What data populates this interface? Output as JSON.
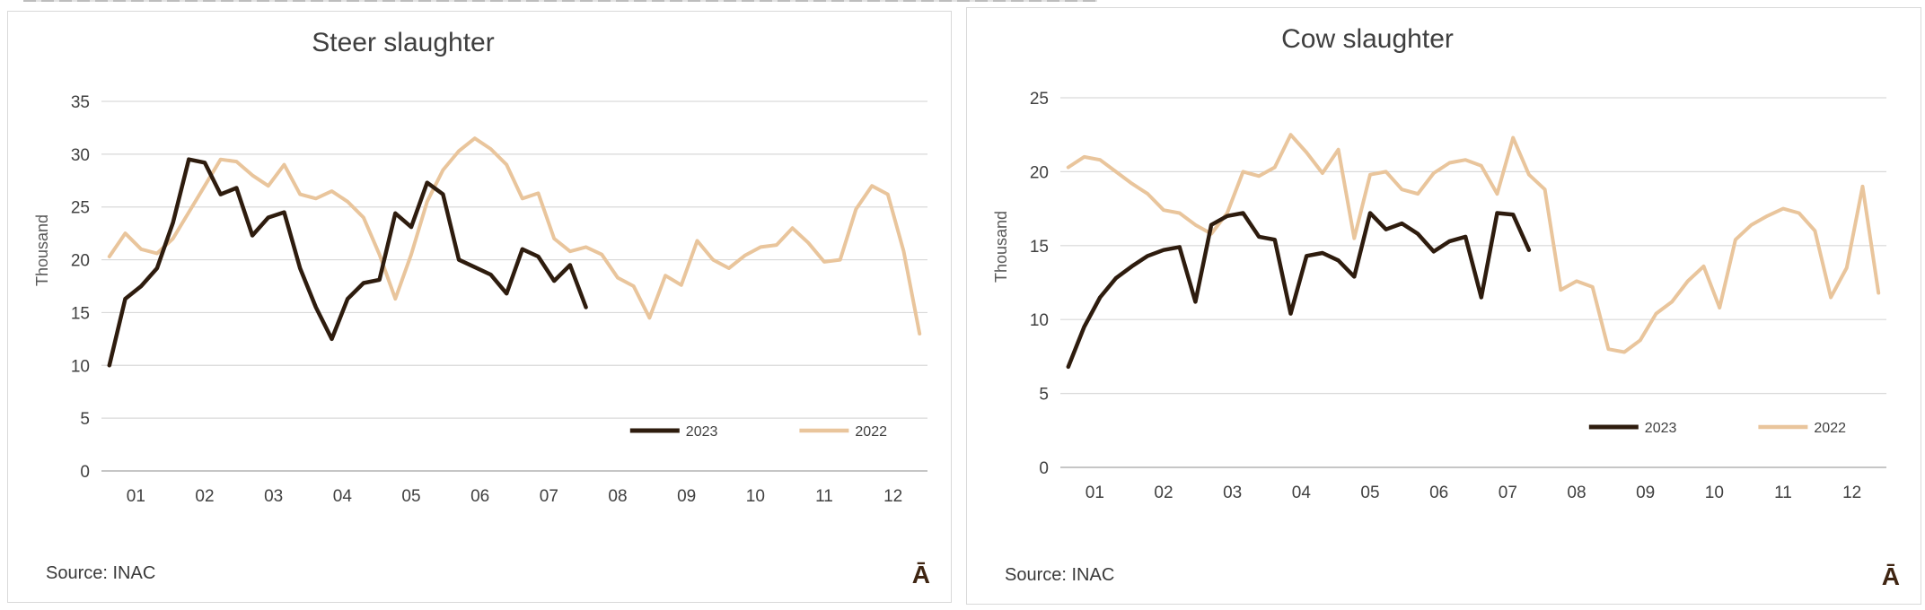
{
  "branding": {
    "glyph": "Ā",
    "color": "#3f2512"
  },
  "style": {
    "grid_color": "#d9d9d9",
    "axis_line_color": "#b3b3b3",
    "tick_text_color": "#404040",
    "title_text_color": "#3f3f3f",
    "source_text_color": "#3a3a3a",
    "y_axis_title_color": "#595959",
    "panel_border_color": "#d9d9d9",
    "series_2023_color": "#2e1c0e",
    "series_2022_color": "#e9c59c"
  },
  "chart_data": [
    {
      "type": "line",
      "title": "Steer slaughter",
      "ylabel": "Thousand",
      "xlabel": "",
      "source_note": "Source: INAC",
      "grid": true,
      "legend_position": "inside-bottom-right",
      "ylim": [
        0,
        35
      ],
      "yticks": [
        0,
        5,
        10,
        15,
        20,
        25,
        30,
        35
      ],
      "x_tick_labels": [
        "01",
        "02",
        "03",
        "04",
        "05",
        "06",
        "07",
        "08",
        "09",
        "10",
        "11",
        "12"
      ],
      "total_slots": 52,
      "series": [
        {
          "name": "2023",
          "color": "#2e1c0e",
          "width": 4.5,
          "values": [
            10.0,
            16.3,
            17.5,
            19.2,
            23.5,
            29.5,
            29.2,
            26.2,
            26.8,
            22.3,
            24.0,
            24.5,
            19.2,
            15.5,
            12.5,
            16.3,
            17.8,
            18.1,
            24.4,
            23.1,
            27.3,
            26.2,
            20.0,
            19.3,
            18.6,
            16.8,
            21.0,
            20.3,
            18.0,
            19.5,
            15.5
          ]
        },
        {
          "name": "2022",
          "color": "#e9c59c",
          "width": 4,
          "values": [
            20.3,
            22.5,
            21.0,
            20.6,
            22.0,
            24.5,
            27.0,
            29.5,
            29.3,
            28.0,
            27.0,
            29.0,
            26.2,
            25.8,
            26.5,
            25.5,
            24.0,
            20.5,
            16.3,
            20.5,
            25.5,
            28.5,
            30.3,
            31.5,
            30.5,
            29.0,
            25.8,
            26.3,
            22.0,
            20.8,
            21.2,
            20.5,
            18.3,
            17.5,
            14.5,
            18.5,
            17.6,
            21.8,
            20.0,
            19.2,
            20.4,
            21.2,
            21.4,
            23.0,
            21.6,
            19.8,
            20.0,
            24.8,
            27.0,
            26.2,
            20.8,
            13.0
          ]
        }
      ]
    },
    {
      "type": "line",
      "title": "Cow slaughter",
      "ylabel": "Thousand",
      "xlabel": "",
      "source_note": "Source: INAC",
      "grid": true,
      "legend_position": "inside-bottom-right",
      "ylim": [
        0,
        25
      ],
      "yticks": [
        0,
        5,
        10,
        15,
        20,
        25
      ],
      "x_tick_labels": [
        "01",
        "02",
        "03",
        "04",
        "05",
        "06",
        "07",
        "08",
        "09",
        "10",
        "11",
        "12"
      ],
      "total_slots": 52,
      "series": [
        {
          "name": "2023",
          "color": "#2e1c0e",
          "width": 4.5,
          "values": [
            6.8,
            9.5,
            11.5,
            12.8,
            13.6,
            14.3,
            14.7,
            14.9,
            11.2,
            16.4,
            17.0,
            17.2,
            15.6,
            15.4,
            10.4,
            14.3,
            14.5,
            14.0,
            12.9,
            17.2,
            16.1,
            16.5,
            15.8,
            14.6,
            15.3,
            15.6,
            11.5,
            17.2,
            17.1,
            14.7
          ]
        },
        {
          "name": "2022",
          "color": "#e9c59c",
          "width": 4,
          "values": [
            20.3,
            21.0,
            20.8,
            20.0,
            19.2,
            18.5,
            17.4,
            17.2,
            16.4,
            15.8,
            17.2,
            20.0,
            19.7,
            20.3,
            22.5,
            21.3,
            19.9,
            21.5,
            15.5,
            19.8,
            20.0,
            18.8,
            18.5,
            19.9,
            20.6,
            20.8,
            20.4,
            18.5,
            22.3,
            19.8,
            18.8,
            12.0,
            12.6,
            12.2,
            8.0,
            7.8,
            8.6,
            10.4,
            11.2,
            12.6,
            13.6,
            10.8,
            15.4,
            16.4,
            17.0,
            17.5,
            17.2,
            16.0,
            11.5,
            13.5,
            19.0,
            11.8
          ]
        }
      ]
    }
  ]
}
